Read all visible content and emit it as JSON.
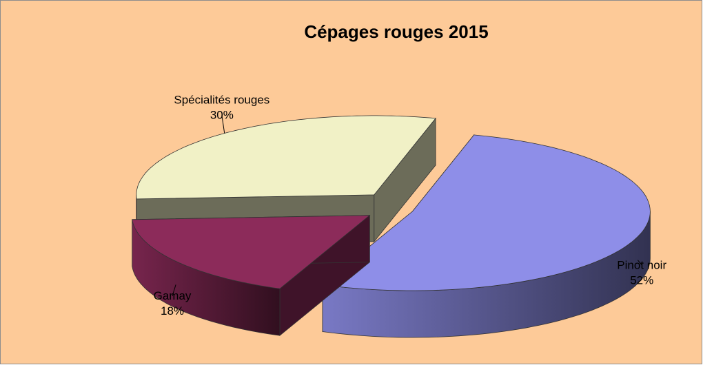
{
  "chart_data": {
    "type": "pie",
    "title": "Cépages rouges 2015",
    "categories": [
      "Pinot noir",
      "Gamay",
      "Spécialités rouges"
    ],
    "values": [
      52,
      18,
      30
    ],
    "value_labels": [
      "52%",
      "18%",
      "30%"
    ],
    "colors": [
      "#8e8ee8",
      "#8c2b5a",
      "#f1f1c6"
    ]
  }
}
